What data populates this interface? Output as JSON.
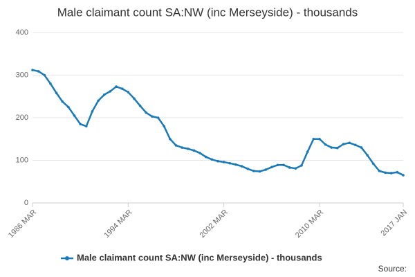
{
  "chart_data": {
    "type": "line",
    "title": "Male claimant count SA:NW (inc Merseyside) - thousands",
    "categories": [
      "1986 MAR",
      null,
      null,
      null,
      null,
      null,
      null,
      null,
      null,
      null,
      null,
      null,
      null,
      null,
      null,
      null,
      "1994 MAR",
      null,
      null,
      null,
      null,
      null,
      null,
      null,
      null,
      null,
      null,
      null,
      null,
      null,
      null,
      null,
      "2002 MAR",
      null,
      null,
      null,
      null,
      null,
      null,
      null,
      null,
      null,
      null,
      null,
      null,
      null,
      null,
      null,
      "2010 MAR",
      null,
      null,
      null,
      null,
      null,
      null,
      null,
      null,
      null,
      null,
      null,
      null,
      null,
      "2017 JAN"
    ],
    "series": [
      {
        "name": "Male claimant count SA:NW (inc Merseyside) - thousands",
        "color": "#1a7ab8",
        "values": [
          312,
          309,
          300,
          280,
          258,
          238,
          225,
          205,
          185,
          180,
          215,
          240,
          254,
          262,
          273,
          268,
          260,
          245,
          228,
          212,
          203,
          200,
          180,
          150,
          135,
          130,
          127,
          123,
          117,
          108,
          102,
          98,
          96,
          93,
          90,
          86,
          80,
          75,
          74,
          78,
          84,
          89,
          89,
          83,
          81,
          88,
          120,
          150,
          150,
          137,
          130,
          129,
          138,
          141,
          136,
          130,
          112,
          92,
          75,
          71,
          70,
          72,
          65
        ]
      }
    ],
    "ylim": [
      0,
      400
    ],
    "yticks": [
      0,
      100,
      200,
      300,
      400
    ],
    "grid": true,
    "legend": "bottom",
    "source": "Source:"
  }
}
